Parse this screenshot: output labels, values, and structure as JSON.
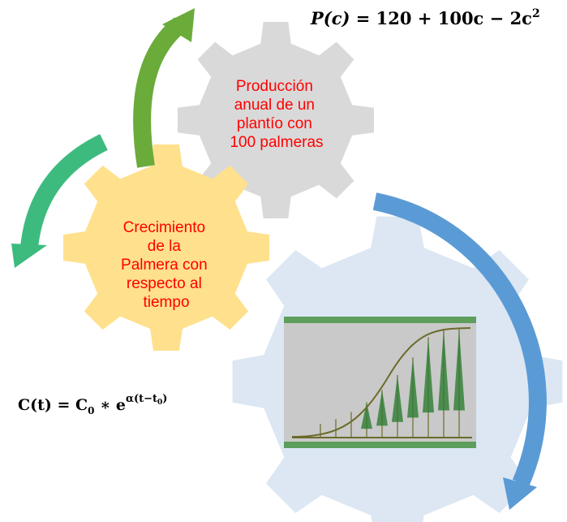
{
  "formula_top": {
    "lhs": "P(c)",
    "rhs": " = 120 + 100c  − 2c",
    "exponent": "2"
  },
  "gear_top": {
    "lines": [
      "Producción",
      "anual de un",
      "plantío con",
      "100 palmeras"
    ]
  },
  "gear_left": {
    "lines": [
      "Crecimiento",
      "de la",
      "Palmera con",
      "respecto al",
      "tiempo"
    ]
  },
  "formula_bottom": {
    "lhs": "C(t) =  C",
    "c_sub": "0",
    "op": " ∗ e",
    "exp": "α(t−t",
    "exp_sub": "0",
    "exp_end": ")"
  }
}
